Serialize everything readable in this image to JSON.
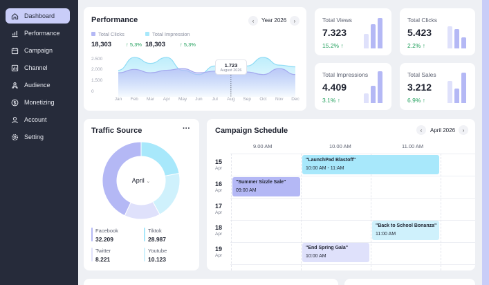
{
  "sidebar": {
    "items": [
      {
        "label": "Dashboard",
        "icon": "home-icon",
        "active": true
      },
      {
        "label": "Performance",
        "icon": "bar-chart-icon"
      },
      {
        "label": "Campaign",
        "icon": "calendar-icon"
      },
      {
        "label": "Channel",
        "icon": "chart-box-icon"
      },
      {
        "label": "Audience",
        "icon": "audience-icon"
      },
      {
        "label": "Monetizing",
        "icon": "dollar-icon"
      },
      {
        "label": "Account",
        "icon": "user-icon"
      },
      {
        "label": "Setting",
        "icon": "gear-icon"
      }
    ]
  },
  "performance": {
    "title": "Performance",
    "period": "Year 2026",
    "legend": [
      {
        "label": "Total Clicks",
        "value": "18,303",
        "change": "↑ 5,3%",
        "color": "#b4b8f5"
      },
      {
        "label": "Total Impression",
        "value": "18,303",
        "change": "↑ 5,3%",
        "color": "#a8e8fb"
      }
    ],
    "tooltip": {
      "value": "1.723",
      "date": "August 2026"
    }
  },
  "chart_data": {
    "type": "area",
    "x": [
      "Jan",
      "Feb",
      "Mar",
      "Apr",
      "May",
      "Jun",
      "Jul",
      "Aug",
      "Sep",
      "Oct",
      "Nov",
      "Dec"
    ],
    "yticks": [
      "2.500",
      "2.000",
      "1.500",
      "0"
    ],
    "ylim": [
      0,
      2500
    ],
    "series": [
      {
        "name": "Total Impression",
        "color": "#a8e8fb",
        "values": [
          1550,
          2300,
          1950,
          2300,
          1550,
          1300,
          1800,
          1700,
          1800,
          2300,
          1850,
          1750
        ]
      },
      {
        "name": "Total Clicks",
        "color": "#b4b8f5",
        "values": [
          1400,
          1600,
          1400,
          1550,
          1650,
          1400,
          1500,
          1723,
          1450,
          1300,
          1650,
          1300
        ]
      }
    ]
  },
  "stats": [
    {
      "label": "Total Views",
      "value": "7.323",
      "change": "15.2% ↑",
      "bars": [
        0.45,
        0.75,
        0.95
      ]
    },
    {
      "label": "Total Clicks",
      "value": "5.423",
      "change": "2.2% ↑",
      "bars": [
        0.7,
        0.6,
        0.35
      ]
    },
    {
      "label": "Total Impressions",
      "value": "4.409",
      "change": "3.1% ↑",
      "bars": [
        0.3,
        0.55,
        1.0
      ]
    },
    {
      "label": "Total Sales",
      "value": "3.212",
      "change": "6.9% ↑",
      "bars": [
        0.7,
        0.45,
        0.95
      ]
    }
  ],
  "traffic": {
    "title": "Traffic Source",
    "month": "April",
    "sources": [
      {
        "label": "Facebook",
        "value": "32.209",
        "color": "#b4b8f5",
        "share": 0.43
      },
      {
        "label": "Tiktok",
        "value": "28.987",
        "color": "#a8e8fb",
        "share": 0.22
      },
      {
        "label": "Twitter",
        "value": "8.221",
        "color": "#dfe1fb",
        "share": 0.15
      },
      {
        "label": "Youtube",
        "value": "10.123",
        "color": "#cff1fc",
        "share": 0.2
      }
    ]
  },
  "schedule": {
    "title": "Campaign Schedule",
    "month": "April 2026",
    "times": [
      "9.00 AM",
      "10.00 AM",
      "11.00 AM"
    ],
    "days": [
      {
        "day": "15",
        "mon": "Apr"
      },
      {
        "day": "16",
        "mon": "Apr"
      },
      {
        "day": "17",
        "mon": "Apr"
      },
      {
        "day": "18",
        "mon": "Apr"
      },
      {
        "day": "19",
        "mon": "Apr"
      }
    ],
    "events": [
      {
        "title": "\"LaunchPad Blastoff\"",
        "time": "10:00 AM - 11:AM",
        "color": "#a8e8fb"
      },
      {
        "title": "\"Summer Sizzle Sale\"",
        "time": "09:00 AM",
        "color": "#b4b8f5"
      },
      {
        "title": "\"Back to School Bonanza\"",
        "time": "11:00 AM",
        "color": "#cff1fc"
      },
      {
        "title": "\"End Spring Gala\"",
        "time": "10:00 AM",
        "color": "#dfe1fb"
      }
    ]
  }
}
